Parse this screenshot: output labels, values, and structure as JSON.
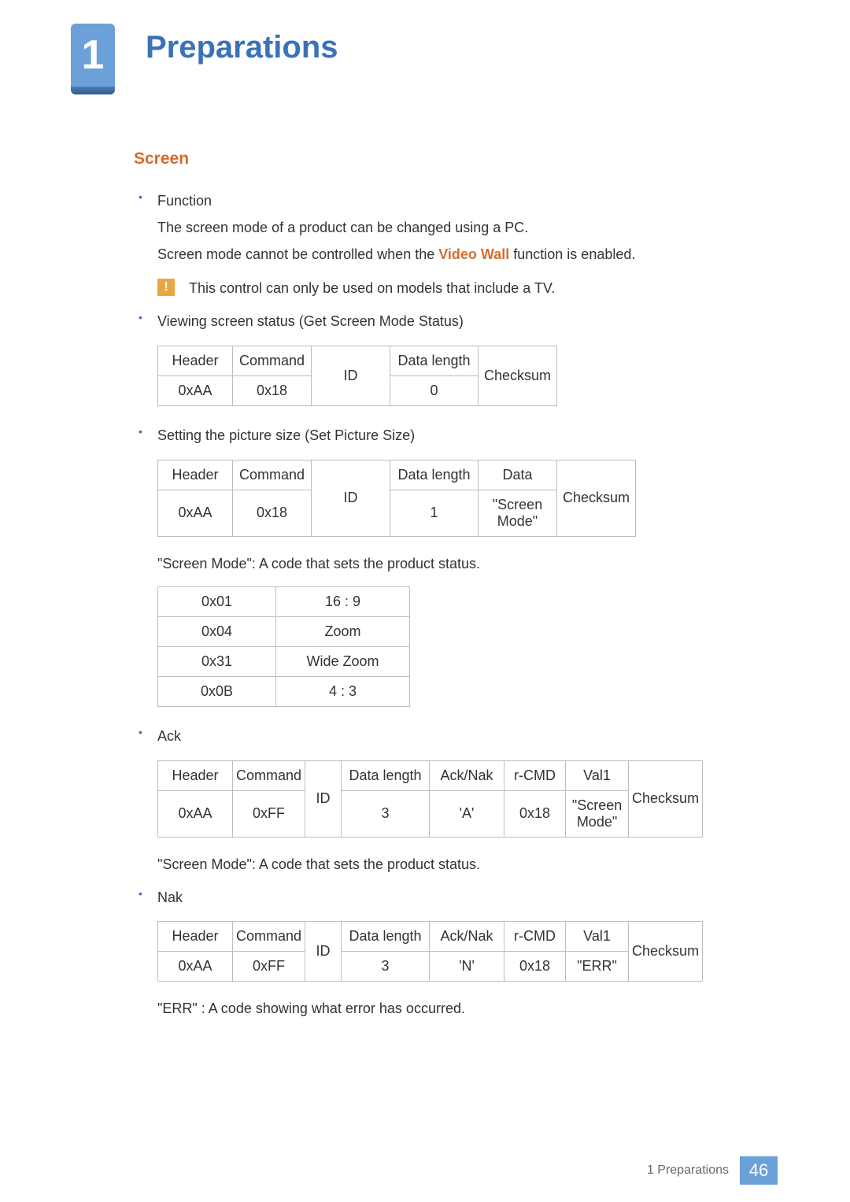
{
  "chapter": {
    "number": "1",
    "title": "Preparations"
  },
  "section": {
    "heading": "Screen"
  },
  "bullets": {
    "b1": {
      "title": "Function",
      "line1": "The screen mode of a product can be changed using a PC.",
      "line2_pre": "Screen mode cannot be controlled when the ",
      "line2_bold": "Video Wall",
      "line2_post": " function is enabled."
    },
    "note": "This control can only be used on models that include a TV.",
    "b2": {
      "title": "Viewing screen status (Get Screen Mode Status)"
    },
    "b3": {
      "title": "Setting the picture size (Set Picture Size)"
    },
    "b4": {
      "title": "Ack"
    },
    "b5": {
      "title": "Nak"
    }
  },
  "tables": {
    "t1": {
      "h": [
        "Header",
        "Command",
        "ID",
        "Data length",
        "Checksum"
      ],
      "r": [
        "0xAA",
        "0x18",
        "0"
      ]
    },
    "t2": {
      "h": [
        "Header",
        "Command",
        "ID",
        "Data length",
        "Data",
        "Checksum"
      ],
      "r": [
        "0xAA",
        "0x18",
        "1",
        "\"Screen Mode\""
      ]
    },
    "t2_note": "\"Screen Mode\": A code that sets the product status.",
    "t3": {
      "rows": [
        [
          "0x01",
          "16 : 9"
        ],
        [
          "0x04",
          "Zoom"
        ],
        [
          "0x31",
          "Wide Zoom"
        ],
        [
          "0x0B",
          "4 : 3"
        ]
      ]
    },
    "t4": {
      "h": [
        "Header",
        "Command",
        "ID",
        "Data length",
        "Ack/Nak",
        "r-CMD",
        "Val1",
        "Checksum"
      ],
      "r": [
        "0xAA",
        "0xFF",
        "3",
        "'A'",
        "0x18",
        "\"Screen Mode\""
      ]
    },
    "t4_note": "\"Screen Mode\": A code that sets the product status.",
    "t5": {
      "h": [
        "Header",
        "Command",
        "ID",
        "Data length",
        "Ack/Nak",
        "r-CMD",
        "Val1",
        "Checksum"
      ],
      "r": [
        "0xAA",
        "0xFF",
        "3",
        "'N'",
        "0x18",
        "\"ERR\""
      ]
    },
    "t5_note": "\"ERR\" : A code showing what error has occurred."
  },
  "footer": {
    "text": "1 Preparations",
    "page": "46"
  }
}
